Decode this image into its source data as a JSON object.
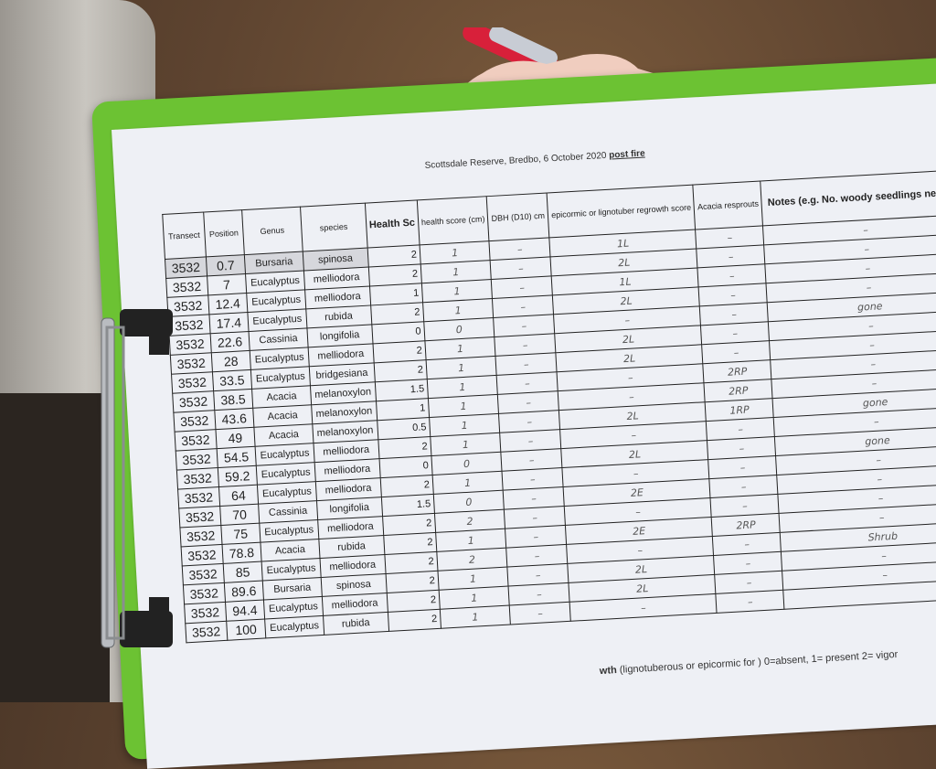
{
  "sheet": {
    "title": "Scottsdale Reserve, Bredbo, 6 October 2020",
    "title_emph": "post fire",
    "footer_bold": "wth",
    "footer": " (lignotuberous or epicormic for ) 0=absent, 1= present 2= vigor",
    "headers": [
      "Transect",
      "Position",
      "Genus",
      "species",
      "Health Sc",
      "health score (cm)",
      "DBH (D10) cm",
      "epicormic or lignotuber regrowth score",
      "Acacia resprouts",
      "Notes (e.g. No. woody seedlings near by"
    ]
  },
  "rows": [
    {
      "transect": "3532",
      "position": "0.7",
      "genus": "Bursaria",
      "species": "spinosa",
      "health": "2",
      "hs": "1",
      "dbh": "–",
      "epi": "1L",
      "acacia": "–",
      "notes": "–"
    },
    {
      "transect": "3532",
      "position": "7",
      "genus": "Eucalyptus",
      "species": "melliodora",
      "health": "2",
      "hs": "1",
      "dbh": "–",
      "epi": "2L",
      "acacia": "–",
      "notes": "–"
    },
    {
      "transect": "3532",
      "position": "12.4",
      "genus": "Eucalyptus",
      "species": "melliodora",
      "health": "1",
      "hs": "1",
      "dbh": "–",
      "epi": "1L",
      "acacia": "–",
      "notes": "–"
    },
    {
      "transect": "3532",
      "position": "17.4",
      "genus": "Eucalyptus",
      "species": "rubida",
      "health": "2",
      "hs": "1",
      "dbh": "–",
      "epi": "2L",
      "acacia": "–",
      "notes": "–"
    },
    {
      "transect": "3532",
      "position": "22.6",
      "genus": "Cassinia",
      "species": "longifolia",
      "health": "0",
      "hs": "0",
      "dbh": "–",
      "epi": "–",
      "acacia": "–",
      "notes": "gone"
    },
    {
      "transect": "3532",
      "position": "28",
      "genus": "Eucalyptus",
      "species": "melliodora",
      "health": "2",
      "hs": "1",
      "dbh": "–",
      "epi": "2L",
      "acacia": "–",
      "notes": "–"
    },
    {
      "transect": "3532",
      "position": "33.5",
      "genus": "Eucalyptus",
      "species": "bridgesiana",
      "health": "2",
      "hs": "1",
      "dbh": "–",
      "epi": "2L",
      "acacia": "–",
      "notes": "–"
    },
    {
      "transect": "3532",
      "position": "38.5",
      "genus": "Acacia",
      "species": "melanoxylon",
      "health": "1.5",
      "hs": "1",
      "dbh": "–",
      "epi": "–",
      "acacia": "2RP",
      "notes": "–"
    },
    {
      "transect": "3532",
      "position": "43.6",
      "genus": "Acacia",
      "species": "melanoxylon",
      "health": "1",
      "hs": "1",
      "dbh": "–",
      "epi": "–",
      "acacia": "2RP",
      "notes": "–"
    },
    {
      "transect": "3532",
      "position": "49",
      "genus": "Acacia",
      "species": "melanoxylon",
      "health": "0.5",
      "hs": "1",
      "dbh": "–",
      "epi": "2L",
      "acacia": "1RP",
      "notes": "gone"
    },
    {
      "transect": "3532",
      "position": "54.5",
      "genus": "Eucalyptus",
      "species": "melliodora",
      "health": "2",
      "hs": "1",
      "dbh": "–",
      "epi": "–",
      "acacia": "–",
      "notes": "–"
    },
    {
      "transect": "3532",
      "position": "59.2",
      "genus": "Eucalyptus",
      "species": "melliodora",
      "health": "0",
      "hs": "0",
      "dbh": "–",
      "epi": "2L",
      "acacia": "–",
      "notes": "gone"
    },
    {
      "transect": "3532",
      "position": "64",
      "genus": "Eucalyptus",
      "species": "melliodora",
      "health": "2",
      "hs": "1",
      "dbh": "–",
      "epi": "–",
      "acacia": "–",
      "notes": "–"
    },
    {
      "transect": "3532",
      "position": "70",
      "genus": "Cassinia",
      "species": "longifolia",
      "health": "1.5",
      "hs": "0",
      "dbh": "–",
      "epi": "2E",
      "acacia": "–",
      "notes": "–"
    },
    {
      "transect": "3532",
      "position": "75",
      "genus": "Eucalyptus",
      "species": "melliodora",
      "health": "2",
      "hs": "2",
      "dbh": "–",
      "epi": "–",
      "acacia": "–",
      "notes": "–"
    },
    {
      "transect": "3532",
      "position": "78.8",
      "genus": "Acacia",
      "species": "rubida",
      "health": "2",
      "hs": "1",
      "dbh": "–",
      "epi": "2E",
      "acacia": "2RP",
      "notes": "–"
    },
    {
      "transect": "3532",
      "position": "85",
      "genus": "Eucalyptus",
      "species": "melliodora",
      "health": "2",
      "hs": "2",
      "dbh": "–",
      "epi": "–",
      "acacia": "–",
      "notes": "Shrub"
    },
    {
      "transect": "3532",
      "position": "89.6",
      "genus": "Bursaria",
      "species": "spinosa",
      "health": "2",
      "hs": "1",
      "dbh": "–",
      "epi": "2L",
      "acacia": "–",
      "notes": "–"
    },
    {
      "transect": "3532",
      "position": "94.4",
      "genus": "Eucalyptus",
      "species": "melliodora",
      "health": "2",
      "hs": "1",
      "dbh": "–",
      "epi": "2L",
      "acacia": "–",
      "notes": "–"
    },
    {
      "transect": "3532",
      "position": "100",
      "genus": "Eucalyptus",
      "species": "rubida",
      "health": "2",
      "hs": "1",
      "dbh": "–",
      "epi": "–",
      "acacia": "–",
      "notes": ""
    }
  ],
  "colors": {
    "clipboard": "#6cc233",
    "paper": "#eef0f5",
    "pen": "#d8203a"
  }
}
